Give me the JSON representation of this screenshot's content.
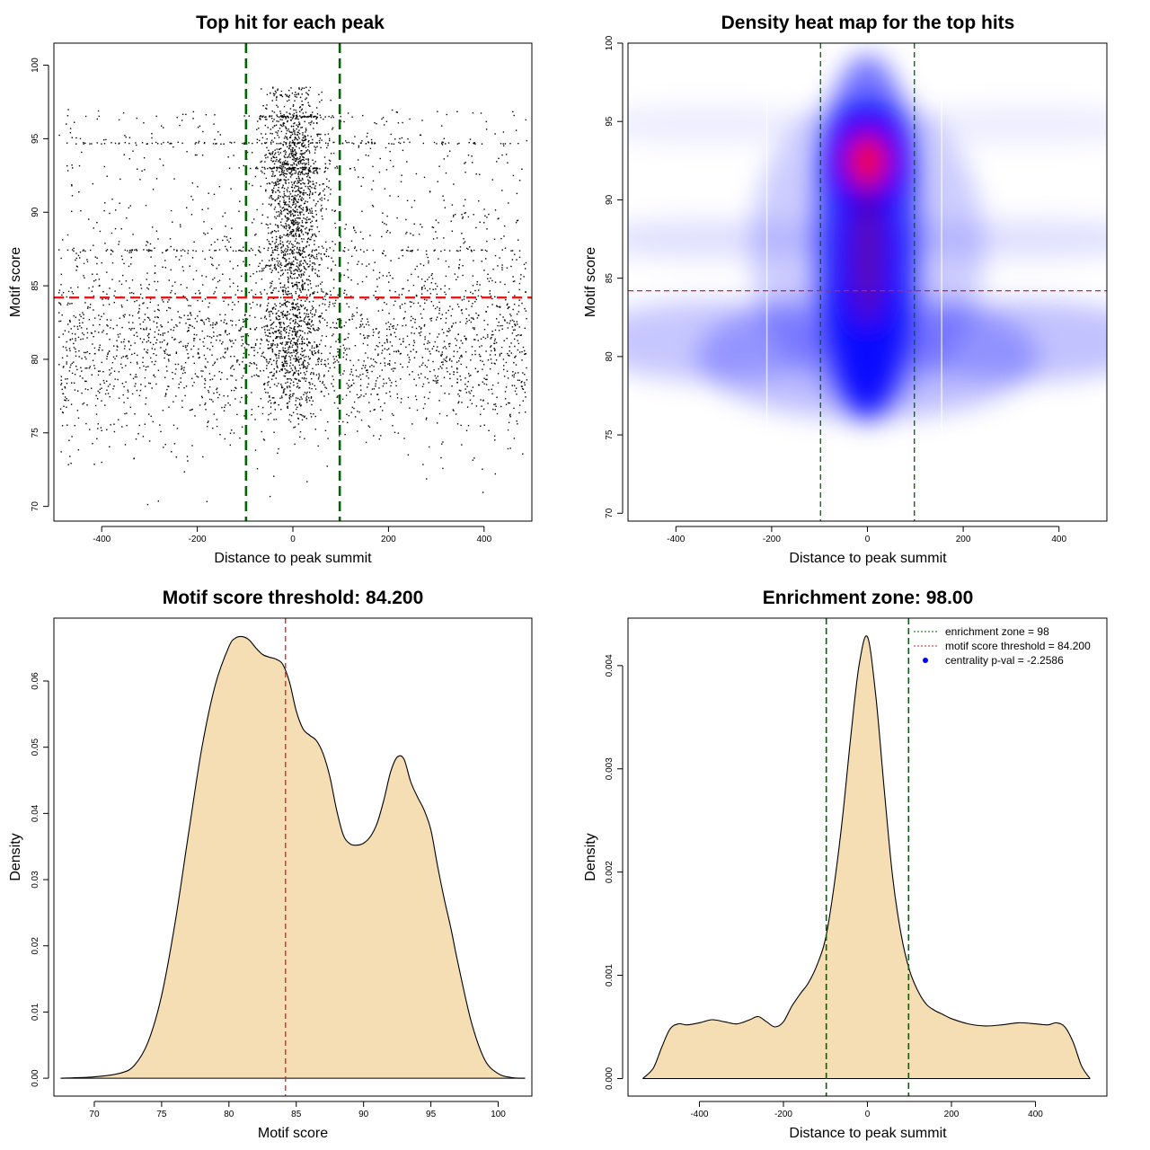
{
  "colors": {
    "fill": "#F5DEB3",
    "green": "#006400",
    "red": "#E41A1C",
    "blue": "#0000FF",
    "dark_red": "#FF0000"
  },
  "chart_data": [
    {
      "type": "scatter",
      "title": "Top hit for each peak",
      "xlabel": "Distance to peak summit",
      "ylabel": "Motif score",
      "xlim": [
        -500,
        500
      ],
      "ylim": [
        69,
        101.5
      ],
      "xticks": [
        -400,
        -200,
        0,
        200,
        400
      ],
      "yticks": [
        70,
        75,
        80,
        85,
        90,
        95,
        100
      ],
      "vlines": [
        -98,
        98
      ],
      "hline": 84.2,
      "grid": false,
      "point_density": {
        "central_peak_center": 0,
        "central_mode_score": 92.5,
        "background_mode_score": 81,
        "dense_score_rows": [
          87.4,
          94.7,
          96.5,
          93.0
        ]
      }
    },
    {
      "type": "heatmap",
      "title": "Density heat map for the top hits",
      "xlabel": "Distance to peak summit",
      "ylabel": "Motif score",
      "xlim": [
        -500,
        500
      ],
      "ylim": [
        69.5,
        100
      ],
      "xticks": [
        -400,
        -200,
        0,
        200,
        400
      ],
      "yticks": [
        70,
        75,
        80,
        85,
        90,
        95,
        100
      ],
      "vlines": [
        -98,
        98
      ],
      "hline": 84.2,
      "hotspot": {
        "x": 0,
        "y": 92.5
      }
    },
    {
      "type": "area",
      "title": "Motif score threshold: 84.200",
      "xlabel": "Motif score",
      "ylabel": "Density",
      "xlim": [
        67,
        102.5
      ],
      "ylim": [
        -0.0027,
        0.0695
      ],
      "xticks": [
        70,
        75,
        80,
        85,
        90,
        95,
        100
      ],
      "yticks": [
        "0.00",
        "0.01",
        "0.02",
        "0.03",
        "0.04",
        "0.05",
        "0.06"
      ],
      "vline": 84.2,
      "x": [
        67.5,
        70,
        72,
        73,
        74,
        75,
        76,
        77,
        78,
        79,
        80,
        80.5,
        81,
        81.5,
        82,
        82.5,
        83,
        83.5,
        84,
        84.5,
        85,
        85.5,
        86,
        86.5,
        87,
        87.5,
        88,
        88.5,
        89,
        89.5,
        90,
        90.5,
        91,
        91.5,
        92,
        92.5,
        93,
        93.5,
        94,
        94.5,
        95,
        95.5,
        96,
        96.5,
        97,
        98,
        99,
        100,
        101,
        102
      ],
      "y": [
        0.0,
        0.0002,
        0.0008,
        0.002,
        0.0055,
        0.0125,
        0.0235,
        0.037,
        0.05,
        0.0595,
        0.0652,
        0.0665,
        0.0667,
        0.0662,
        0.065,
        0.064,
        0.0636,
        0.0633,
        0.0625,
        0.0598,
        0.0555,
        0.0528,
        0.0518,
        0.051,
        0.049,
        0.0455,
        0.0405,
        0.0367,
        0.0354,
        0.0352,
        0.0355,
        0.0365,
        0.0385,
        0.042,
        0.0462,
        0.0485,
        0.0482,
        0.0448,
        0.0425,
        0.0405,
        0.0375,
        0.032,
        0.027,
        0.0225,
        0.0175,
        0.0085,
        0.0028,
        0.0007,
        0.0001,
        0.0
      ]
    },
    {
      "type": "area",
      "title": "Enrichment zone: 98.00",
      "xlabel": "Distance to peak summit",
      "ylabel": "Density",
      "xlim": [
        -570,
        570
      ],
      "ylim": [
        -0.00017,
        0.00446
      ],
      "xticks": [
        -400,
        -200,
        0,
        200,
        400
      ],
      "yticks": [
        "0.000",
        "0.001",
        "0.002",
        "0.003",
        "0.004"
      ],
      "vlines": [
        -98,
        98
      ],
      "legend": {
        "position": "top-right",
        "entries": [
          {
            "label": "enrichment zone = 98",
            "color": "#006400",
            "style": "dotted-line"
          },
          {
            "label": "motif score threshold = 84.200",
            "color": "#E41A1C",
            "style": "dotted-line"
          },
          {
            "label": "centrality p-val = -2.2586",
            "color": "#0000FF",
            "style": "point"
          }
        ]
      },
      "x": [
        -535,
        -510,
        -490,
        -470,
        -450,
        -430,
        -400,
        -370,
        -340,
        -310,
        -280,
        -260,
        -240,
        -220,
        -200,
        -180,
        -160,
        -140,
        -120,
        -100,
        -80,
        -60,
        -40,
        -20,
        0,
        20,
        40,
        60,
        80,
        100,
        120,
        140,
        160,
        180,
        200,
        240,
        280,
        320,
        360,
        400,
        430,
        450,
        470,
        490,
        510,
        530
      ],
      "y": [
        0.0,
        0.0001,
        0.0003,
        0.00048,
        0.00053,
        0.00052,
        0.00054,
        0.00057,
        0.00055,
        0.00053,
        0.00057,
        0.0006,
        0.00055,
        0.0005,
        0.00055,
        0.0007,
        0.00082,
        0.00093,
        0.0011,
        0.00135,
        0.00185,
        0.0025,
        0.0033,
        0.004,
        0.00428,
        0.0037,
        0.0028,
        0.00195,
        0.0014,
        0.00105,
        0.00085,
        0.00072,
        0.00066,
        0.00062,
        0.00058,
        0.00053,
        0.00051,
        0.00052,
        0.00054,
        0.00053,
        0.00052,
        0.00054,
        0.0005,
        0.00035,
        0.00012,
        0.0
      ]
    }
  ]
}
